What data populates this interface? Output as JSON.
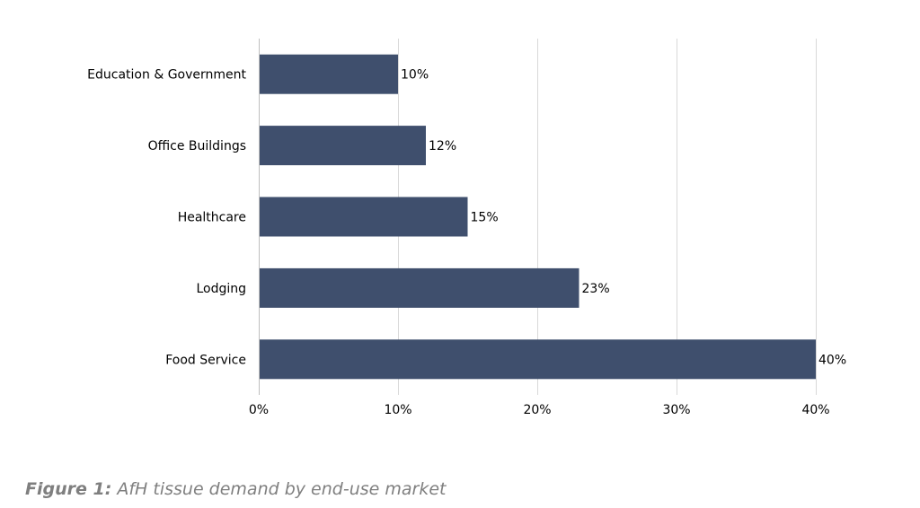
{
  "chart_data": {
    "type": "bar",
    "orientation": "horizontal",
    "categories": [
      "Education & Government",
      "Office Buildings",
      "Healthcare",
      "Lodging",
      "Food Service"
    ],
    "values": [
      10,
      12,
      15,
      23,
      40
    ],
    "value_labels": [
      "10%",
      "12%",
      "15%",
      "23%",
      "40%"
    ],
    "xlim": [
      0,
      40
    ],
    "x_ticks": [
      0,
      10,
      20,
      30,
      40
    ],
    "x_tick_labels": [
      "0%",
      "10%",
      "20%",
      "30%",
      "40%"
    ],
    "grid": "vertical",
    "bar_color": "#3f4f6d",
    "grid_color": "#d9d9d9",
    "legend": "none"
  },
  "caption": {
    "label": "Figure 1:",
    "text": "AfH tissue demand by end-use market"
  }
}
